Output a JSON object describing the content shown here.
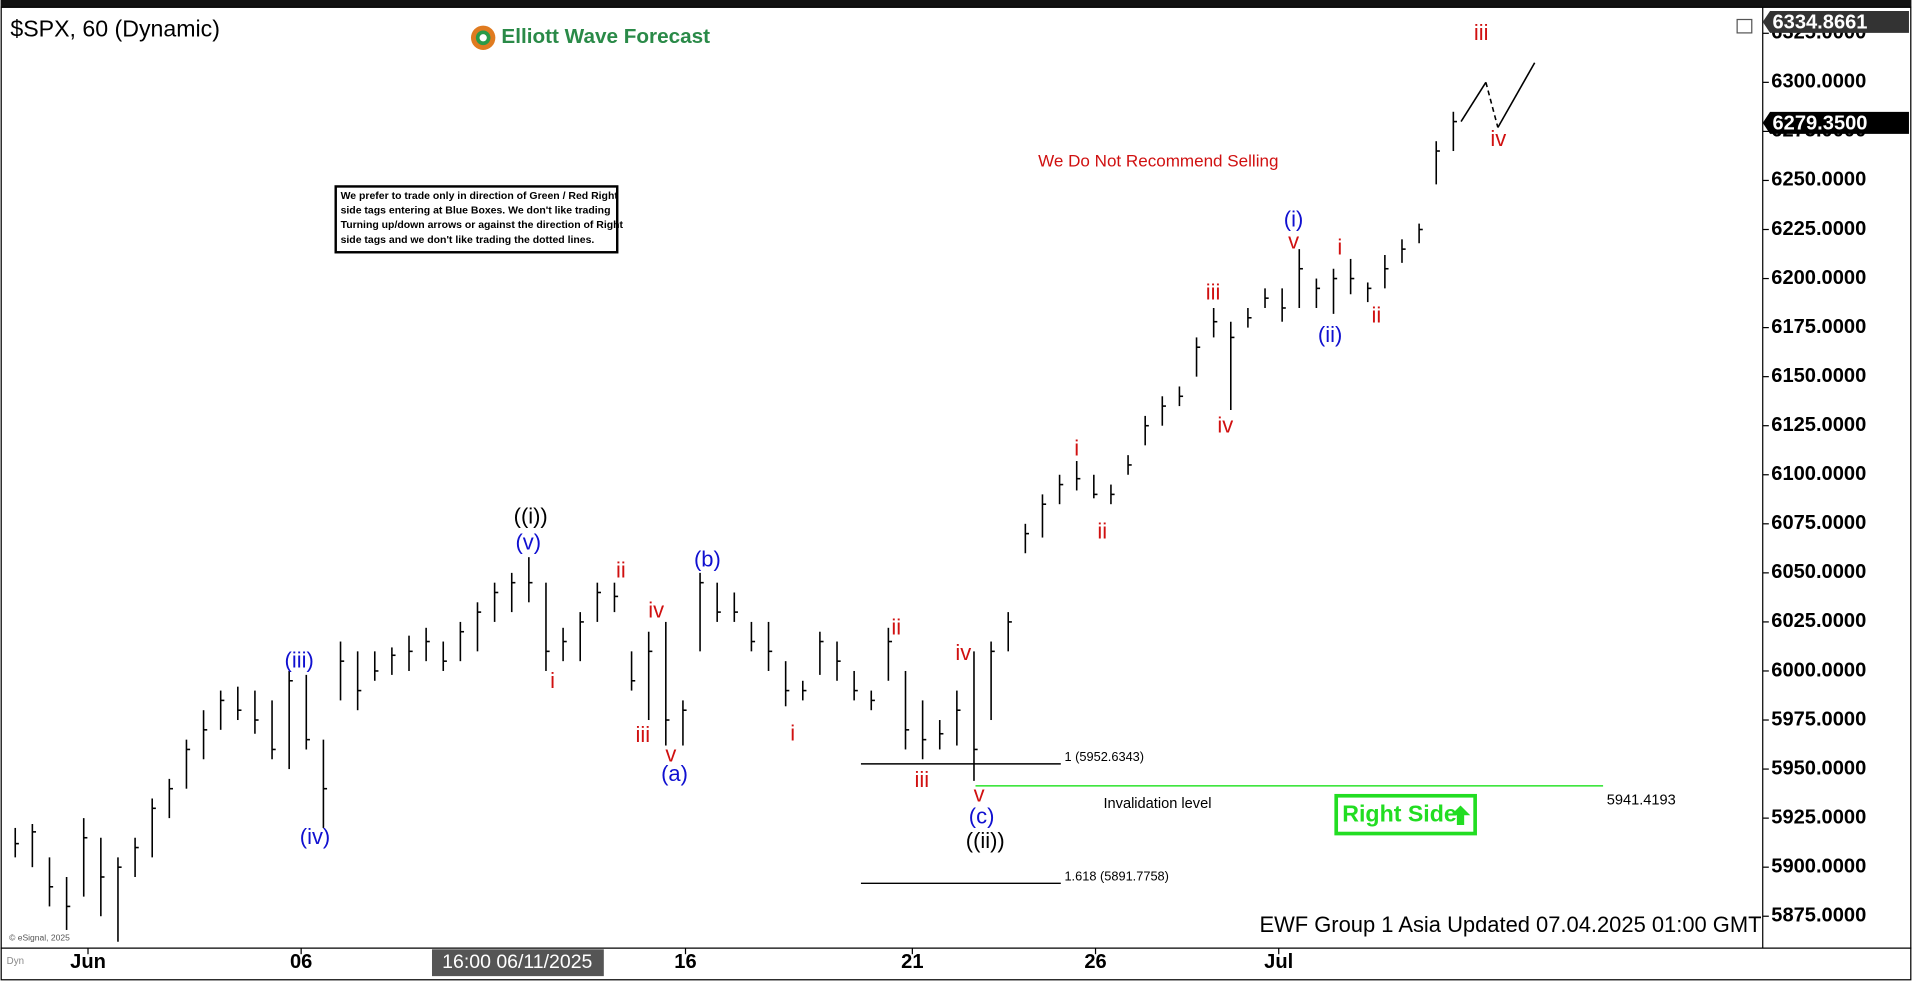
{
  "chart_data": {
    "type": "hlc",
    "title": "$SPX, 60 (Dynamic)",
    "logo": "Elliott Wave Forecast",
    "note": [
      "We prefer to trade only in direction of Green / Red Right",
      "side tags entering at Blue Boxes. We don't like trading",
      "Turning up/down arrows or against the direction of Right",
      "side tags and we don't like trading the dotted lines."
    ],
    "headline": "We Do Not Recommend Selling",
    "right_side": "Right Side",
    "footer": "EWF Group 1 Asia Updated 07.04.2025 01:00 GMT",
    "copyright": "© eSignal, 2025",
    "corner": "Dyn",
    "cursor_time": "16:00 06/11/2025",
    "xlim": [
      0,
      205
    ],
    "ylim": [
      5860,
      6337
    ],
    "xticks": [
      {
        "value": 9.5,
        "label": "Jun"
      },
      {
        "value": 34.4,
        "label": "06"
      },
      {
        "value": 79.3,
        "label": "16"
      },
      {
        "value": 105.8,
        "label": "21"
      },
      {
        "value": 127.2,
        "label": "26"
      },
      {
        "value": 148.6,
        "label": "Jul"
      }
    ],
    "yticks": [
      {
        "value": 5875,
        "label": "5875.0000"
      },
      {
        "value": 5900,
        "label": "5900.0000"
      },
      {
        "value": 5925,
        "label": "5925.0000"
      },
      {
        "value": 5950,
        "label": "5950.0000"
      },
      {
        "value": 5975,
        "label": "5975.0000"
      },
      {
        "value": 6000,
        "label": "6000.0000"
      },
      {
        "value": 6025,
        "label": "6025.0000"
      },
      {
        "value": 6050,
        "label": "6050.0000"
      },
      {
        "value": 6075,
        "label": "6075.0000"
      },
      {
        "value": 6100,
        "label": "6100.0000"
      },
      {
        "value": 6125,
        "label": "6125.0000"
      },
      {
        "value": 6150,
        "label": "6150.0000"
      },
      {
        "value": 6175,
        "label": "6175.0000"
      },
      {
        "value": 6200,
        "label": "6200.0000"
      },
      {
        "value": 6225,
        "label": "6225.0000"
      },
      {
        "value": 6250,
        "label": "6250.0000"
      },
      {
        "value": 6275,
        "label": "6275.0000"
      },
      {
        "value": 6300,
        "label": "6300.0000"
      },
      {
        "value": 6325,
        "label": "6325.0000"
      }
    ],
    "price_tags": [
      {
        "value": 6334.8661,
        "label": "6334.8661",
        "color": "#333333"
      },
      {
        "value": 6279.35,
        "label": "6279.3500",
        "color": "#000000"
      }
    ],
    "fib_levels": [
      {
        "value": 5952.6343,
        "label": "1 (5952.6343)"
      },
      {
        "value": 5891.7758,
        "label": "1.618 (5891.7758)"
      }
    ],
    "invalidation": {
      "value": 5941.4193,
      "label": "5941.4193",
      "text": "Invalidation level",
      "color": "#00dd00"
    },
    "bar_color": "#000000",
    "bars": {
      "x": [
        1,
        3,
        5,
        7,
        9,
        11,
        13,
        15,
        17,
        19,
        21,
        23,
        25,
        27,
        29,
        31,
        33,
        35,
        37,
        39,
        41,
        43,
        45,
        47,
        49,
        51,
        53,
        55,
        57,
        59,
        61,
        63,
        65,
        67,
        69,
        71,
        73,
        75,
        77,
        79,
        81,
        83,
        85,
        87,
        89,
        91,
        93,
        95,
        97,
        99,
        101,
        103,
        105,
        107,
        109,
        111,
        113,
        115,
        117,
        119,
        121,
        123,
        125,
        127,
        129,
        131,
        133,
        135,
        137,
        139,
        141,
        143,
        145,
        147,
        149,
        151,
        153,
        155,
        157,
        159,
        161,
        163,
        165,
        167,
        169
      ],
      "high": [
        5920,
        5922,
        5905,
        5895,
        5925,
        5915,
        5905,
        5915,
        5935,
        5945,
        5965,
        5980,
        5990,
        5992,
        5990,
        5985,
        6000,
        5998,
        5965,
        6015,
        6010,
        6010,
        6012,
        6018,
        6022,
        6015,
        6025,
        6035,
        6045,
        6050,
        6058,
        6045,
        6022,
        6030,
        6045,
        6045,
        6010,
        6020,
        6025,
        5985,
        6050,
        6045,
        6040,
        6025,
        6025,
        6005,
        5995,
        6020,
        6015,
        6000,
        5990,
        6022,
        6000,
        5985,
        5975,
        5990,
        6010,
        6015,
        6030,
        6075,
        6090,
        6100,
        6107,
        6100,
        6095,
        6110,
        6130,
        6140,
        6145,
        6170,
        6185,
        6178,
        6185,
        6195,
        6195,
        6215,
        6200,
        6205,
        6210,
        6198,
        6212,
        6220,
        6228,
        6270,
        6285
      ],
      "low": [
        5905,
        5900,
        5880,
        5868,
        5885,
        5875,
        5862,
        5895,
        5905,
        5925,
        5940,
        5955,
        5970,
        5975,
        5968,
        5955,
        5950,
        5960,
        5920,
        5985,
        5980,
        5995,
        5998,
        6000,
        6005,
        6000,
        6005,
        6010,
        6025,
        6030,
        6035,
        6000,
        6005,
        6005,
        6025,
        6030,
        5990,
        5975,
        5962,
        5962,
        6010,
        6025,
        6025,
        6010,
        6000,
        5982,
        5985,
        5998,
        5995,
        5985,
        5980,
        5995,
        5960,
        5955,
        5960,
        5962,
        5944,
        5975,
        6010,
        6060,
        6068,
        6085,
        6092,
        6088,
        6085,
        6100,
        6115,
        6125,
        6135,
        6150,
        6170,
        6133,
        6175,
        6185,
        6178,
        6185,
        6185,
        6182,
        6192,
        6188,
        6195,
        6208,
        6218,
        6248,
        6265
      ],
      "close": [
        5912,
        5918,
        5890,
        5880,
        5915,
        5895,
        5900,
        5910,
        5930,
        5940,
        5960,
        5970,
        5985,
        5980,
        5975,
        5960,
        5995,
        5965,
        5940,
        6005,
        5990,
        6000,
        6008,
        6010,
        6015,
        6005,
        6020,
        6030,
        6040,
        6045,
        6045,
        6010,
        6015,
        6025,
        6040,
        6038,
        5995,
        6010,
        5975,
        5980,
        6045,
        6030,
        6030,
        6015,
        6010,
        5990,
        5990,
        6015,
        6005,
        5990,
        5985,
        6015,
        5970,
        5965,
        5968,
        5980,
        5960,
        6010,
        6025,
        6070,
        6085,
        6095,
        6098,
        6090,
        6090,
        6105,
        6125,
        6135,
        6140,
        6165,
        6178,
        6170,
        6180,
        6190,
        6185,
        6205,
        6195,
        6200,
        6200,
        6195,
        6205,
        6215,
        6225,
        6265,
        6280
      ]
    },
    "projection": {
      "x": [
        169.9,
        172.8,
        174.2,
        178.5
      ],
      "y": [
        6280,
        6300,
        6277,
        6310
      ]
    },
    "wave_labels": [
      {
        "text": "(iii)",
        "color": "#1010d0"
      },
      {
        "text": "(iv)",
        "color": "#1010d0"
      },
      {
        "text": "((i))",
        "color": "#000000"
      },
      {
        "text": "(v)",
        "color": "#1010d0"
      },
      {
        "text": "i",
        "color": "#d01010"
      },
      {
        "text": "ii",
        "color": "#d01010"
      },
      {
        "text": "iii",
        "color": "#d01010"
      },
      {
        "text": "iv",
        "color": "#d01010"
      },
      {
        "text": "v",
        "color": "#d01010"
      },
      {
        "text": "(a)",
        "color": "#1010d0"
      },
      {
        "text": "(b)",
        "color": "#1010d0"
      },
      {
        "text": "i",
        "color": "#d01010"
      },
      {
        "text": "ii",
        "color": "#d01010"
      },
      {
        "text": "iii",
        "color": "#d01010"
      },
      {
        "text": "iv",
        "color": "#d01010"
      },
      {
        "text": "v",
        "color": "#d01010"
      },
      {
        "text": "(c)",
        "color": "#1010d0"
      },
      {
        "text": "((ii))",
        "color": "#000000"
      },
      {
        "text": "i",
        "color": "#d01010"
      },
      {
        "text": "ii",
        "color": "#d01010"
      },
      {
        "text": "iii",
        "color": "#d01010"
      },
      {
        "text": "iv",
        "color": "#d01010"
      },
      {
        "text": "(i)",
        "color": "#1010d0"
      },
      {
        "text": "v",
        "color": "#d01010"
      },
      {
        "text": "(ii)",
        "color": "#1010d0"
      },
      {
        "text": "i",
        "color": "#d01010"
      },
      {
        "text": "ii",
        "color": "#d01010"
      },
      {
        "text": "iii",
        "color": "#d01010"
      },
      {
        "text": "iv",
        "color": "#d01010"
      }
    ]
  }
}
